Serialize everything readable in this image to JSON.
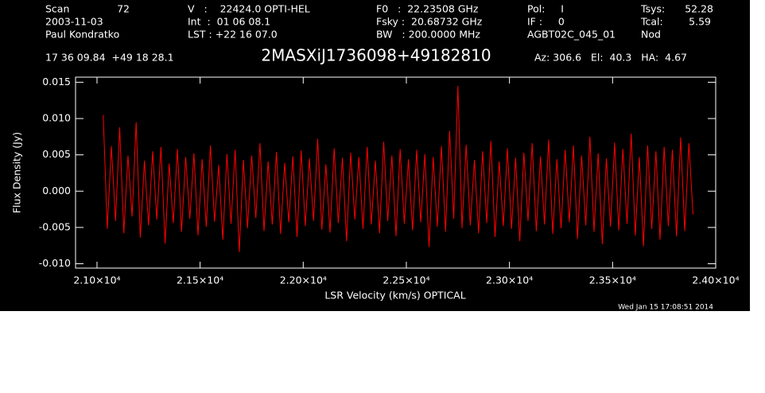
{
  "chart_data": {
    "type": "line",
    "title": "2MASXiJ1736098+49182810",
    "annotations": [
      "Scan",
      "72",
      "2003-11-03",
      "Paul Kondratko",
      "V   :    22424.0 OPTI-HEL",
      "Int  :  01 06 08.1",
      "LST : +22 16 07.0",
      "F0   :  22.23508 GHz",
      "Fsky :  20.68732 GHz",
      "BW   : 200.0000 MHz",
      "Pol:     I",
      "IF :     0",
      "AGBT02C_045_01",
      "Tsys:",
      "52.28",
      "Tcal:",
      "5.59",
      "Nod",
      "17 36 09.84  +49 18 28.1",
      "Az: 306.6   El:  40.3   HA:  4.67",
      "Wed Jan 15 17:08:51 2014"
    ],
    "x_label": "LSR Velocity (km/s) OPTICAL",
    "y_label": "Flux Density (Jy)",
    "xlim": [
      20896,
      24000
    ],
    "ylim": [
      -0.0106,
      0.0157
    ],
    "xticks": [
      {
        "value": 21000,
        "label": "2.10×10⁴"
      },
      {
        "value": 21500,
        "label": "2.15×10⁴"
      },
      {
        "value": 22000,
        "label": "2.20×10⁴"
      },
      {
        "value": 22500,
        "label": "2.25×10⁴"
      },
      {
        "value": 23000,
        "label": "2.30×10⁴"
      },
      {
        "value": 23500,
        "label": "2.35×10⁴"
      },
      {
        "value": 24000,
        "label": "2.40×10⁴"
      }
    ],
    "yticks": [
      {
        "value": -0.01,
        "label": "-0.010"
      },
      {
        "value": -0.005,
        "label": "-0.005"
      },
      {
        "value": 0,
        "label": "0.000"
      },
      {
        "value": 0.005,
        "label": "0.005"
      },
      {
        "value": 0.01,
        "label": "0.010"
      },
      {
        "value": 0.015,
        "label": "0.015"
      }
    ],
    "series": [
      {
        "color": "#ff0000",
        "x": [
          21030,
          21050,
          21070,
          21090,
          21110,
          21130,
          21150,
          21170,
          21190,
          21210,
          21230,
          21250,
          21270,
          21290,
          21310,
          21330,
          21350,
          21370,
          21390,
          21410,
          21430,
          21450,
          21470,
          21490,
          21510,
          21530,
          21550,
          21570,
          21590,
          21610,
          21630,
          21650,
          21670,
          21690,
          21710,
          21730,
          21750,
          21770,
          21790,
          21810,
          21830,
          21850,
          21870,
          21890,
          21910,
          21930,
          21950,
          21970,
          21990,
          22010,
          22030,
          22050,
          22070,
          22090,
          22110,
          22130,
          22150,
          22170,
          22190,
          22210,
          22230,
          22250,
          22270,
          22290,
          22310,
          22330,
          22350,
          22370,
          22390,
          22410,
          22430,
          22450,
          22470,
          22490,
          22510,
          22530,
          22550,
          22570,
          22590,
          22610,
          22630,
          22650,
          22670,
          22690,
          22710,
          22730,
          22750,
          22770,
          22790,
          22810,
          22830,
          22850,
          22870,
          22890,
          22910,
          22930,
          22950,
          22970,
          22990,
          23010,
          23030,
          23050,
          23070,
          23090,
          23110,
          23130,
          23150,
          23170,
          23190,
          23210,
          23230,
          23250,
          23270,
          23290,
          23310,
          23330,
          23350,
          23370,
          23390,
          23410,
          23430,
          23450,
          23470,
          23490,
          23510,
          23530,
          23550,
          23570,
          23590,
          23610,
          23630,
          23650,
          23670,
          23690,
          23710,
          23730,
          23750,
          23770,
          23790,
          23810,
          23830,
          23850,
          23870,
          23890
        ],
        "values": [
          0.0105,
          -0.0052,
          0.0062,
          -0.0041,
          0.0088,
          -0.0058,
          0.0049,
          -0.0035,
          0.0095,
          -0.0064,
          0.0042,
          -0.0047,
          0.0055,
          -0.0039,
          0.0061,
          -0.0072,
          0.0038,
          -0.0044,
          0.0058,
          -0.0056,
          0.0047,
          -0.0038,
          0.0052,
          -0.0061,
          0.0044,
          -0.0049,
          0.0063,
          -0.0042,
          0.0036,
          -0.0067,
          0.0051,
          -0.0045,
          0.0057,
          -0.0084,
          0.0043,
          -0.0051,
          0.0049,
          -0.0037,
          0.0066,
          -0.0055,
          0.0041,
          -0.0046,
          0.0054,
          -0.0059,
          0.0039,
          -0.0043,
          0.0048,
          -0.0063,
          0.0056,
          -0.0048,
          0.0045,
          -0.0041,
          0.0072,
          -0.0053,
          0.0037,
          -0.0057,
          0.0059,
          -0.0044,
          0.0046,
          -0.0069,
          0.0053,
          -0.0039,
          0.0047,
          -0.0052,
          0.0061,
          -0.0046,
          0.0042,
          -0.0058,
          0.0068,
          -0.0041,
          0.0049,
          -0.0062,
          0.0058,
          -0.0045,
          0.0044,
          -0.0054,
          0.0057,
          -0.0043,
          0.0051,
          -0.0077,
          0.0047,
          -0.0049,
          0.0062,
          -0.0056,
          0.0083,
          -0.0038,
          0.0145,
          -0.0051,
          0.0064,
          -0.0047,
          0.0043,
          -0.0058,
          0.0055,
          -0.0044,
          0.0069,
          -0.0063,
          0.0041,
          -0.0048,
          0.0059,
          -0.0052,
          0.0046,
          -0.0069,
          0.0053,
          -0.0041,
          0.0066,
          -0.0055,
          0.0048,
          -0.0046,
          0.0071,
          -0.0059,
          0.0044,
          -0.0051,
          0.0057,
          -0.0043,
          0.0063,
          -0.0066,
          0.0049,
          -0.0047,
          0.0075,
          -0.0056,
          0.0052,
          -0.0073,
          0.0045,
          -0.0049,
          0.0067,
          -0.0054,
          0.0058,
          -0.0045,
          0.0079,
          -0.0061,
          0.0047,
          -0.0076,
          0.0063,
          -0.0052,
          0.0055,
          -0.0067,
          0.0061,
          -0.0048,
          0.0057,
          -0.0062,
          0.0074,
          -0.0055,
          0.0066,
          -0.0032
        ]
      }
    ]
  }
}
